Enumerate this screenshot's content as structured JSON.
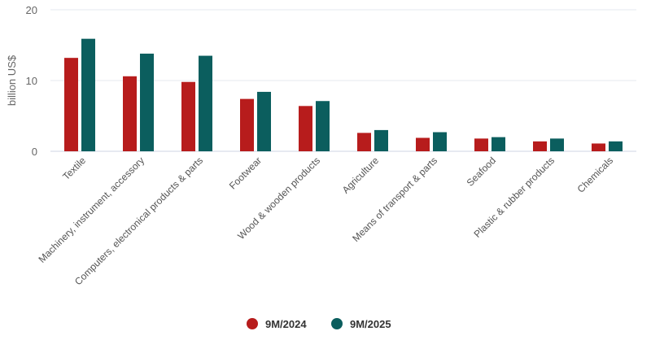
{
  "chart_data": {
    "type": "bar",
    "title": "",
    "xlabel": "",
    "ylabel": "billion US$",
    "ylim": [
      0,
      20
    ],
    "yticks": [
      0,
      10,
      20
    ],
    "grid": true,
    "legend_position": "bottom",
    "categories": [
      "Textile",
      "Machinery, instrument, accessory",
      "Computers, electronical products & parts",
      "Footwear",
      "Wood & wooden products",
      "Agriculture",
      "Means of transport & parts",
      "Seafood",
      "Plastic & rubber products",
      "Chemicals"
    ],
    "series": [
      {
        "name": "9M/2024",
        "color": "#b71c1c",
        "values": [
          13.2,
          10.6,
          9.8,
          7.4,
          6.4,
          2.6,
          1.9,
          1.8,
          1.4,
          1.1
        ]
      },
      {
        "name": "9M/2025",
        "color": "#0b5e5e",
        "values": [
          15.9,
          13.8,
          13.5,
          8.4,
          7.1,
          3.0,
          2.7,
          2.0,
          1.8,
          1.4
        ]
      }
    ]
  }
}
